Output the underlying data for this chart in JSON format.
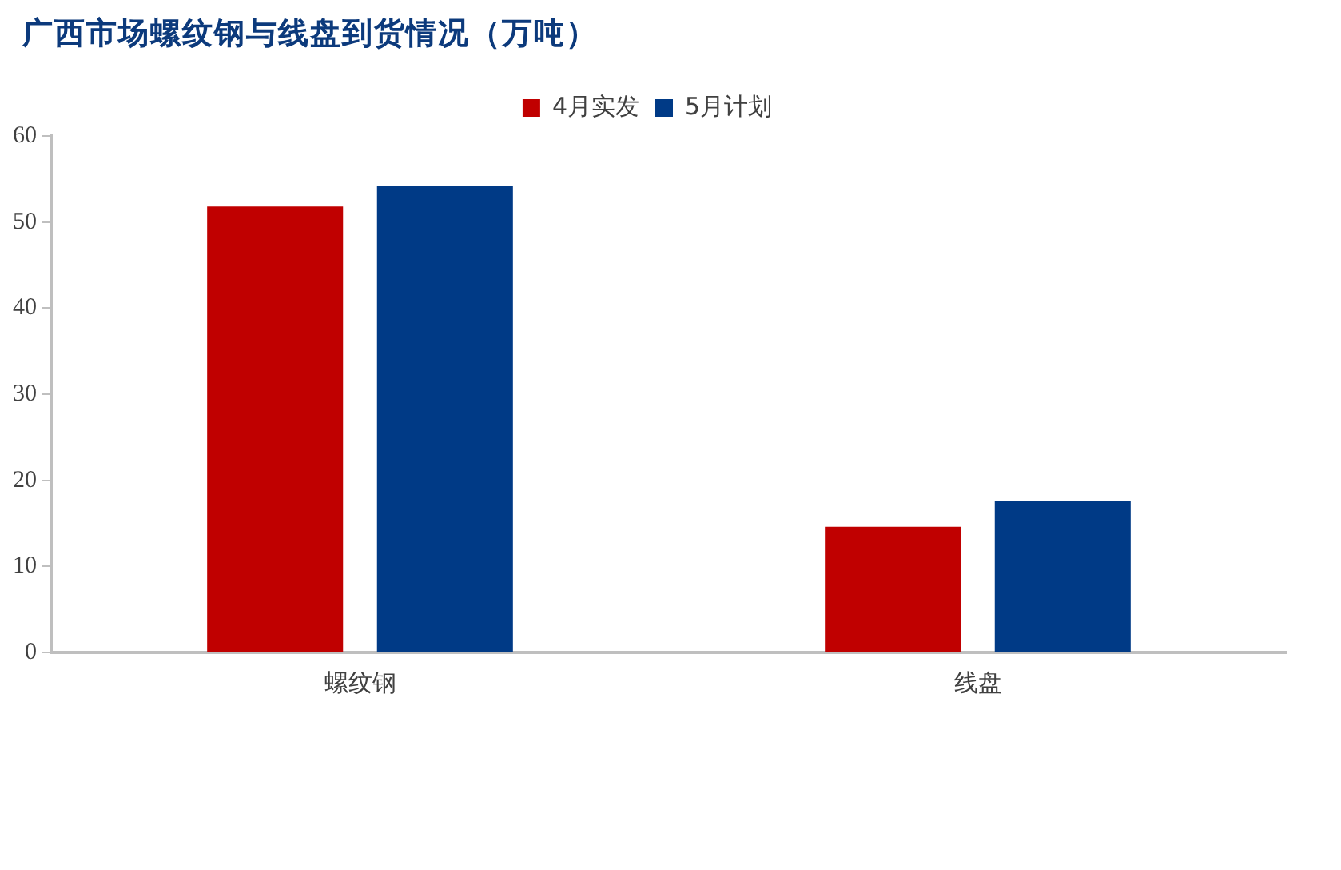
{
  "chart_data": {
    "type": "bar",
    "title": "广西市场螺纹钢与线盘到货情况（万吨）",
    "categories": [
      "螺纹钢",
      "线盘"
    ],
    "series": [
      {
        "name": "4月实发",
        "color": "#c00000",
        "values": [
          51.8,
          14.6
        ]
      },
      {
        "name": "5月计划",
        "color": "#003a86",
        "values": [
          54.2,
          17.6
        ]
      }
    ],
    "ylim": [
      0,
      60
    ],
    "yticks": [
      0,
      10,
      20,
      30,
      40,
      50,
      60
    ],
    "grid": false,
    "legend": "top"
  }
}
